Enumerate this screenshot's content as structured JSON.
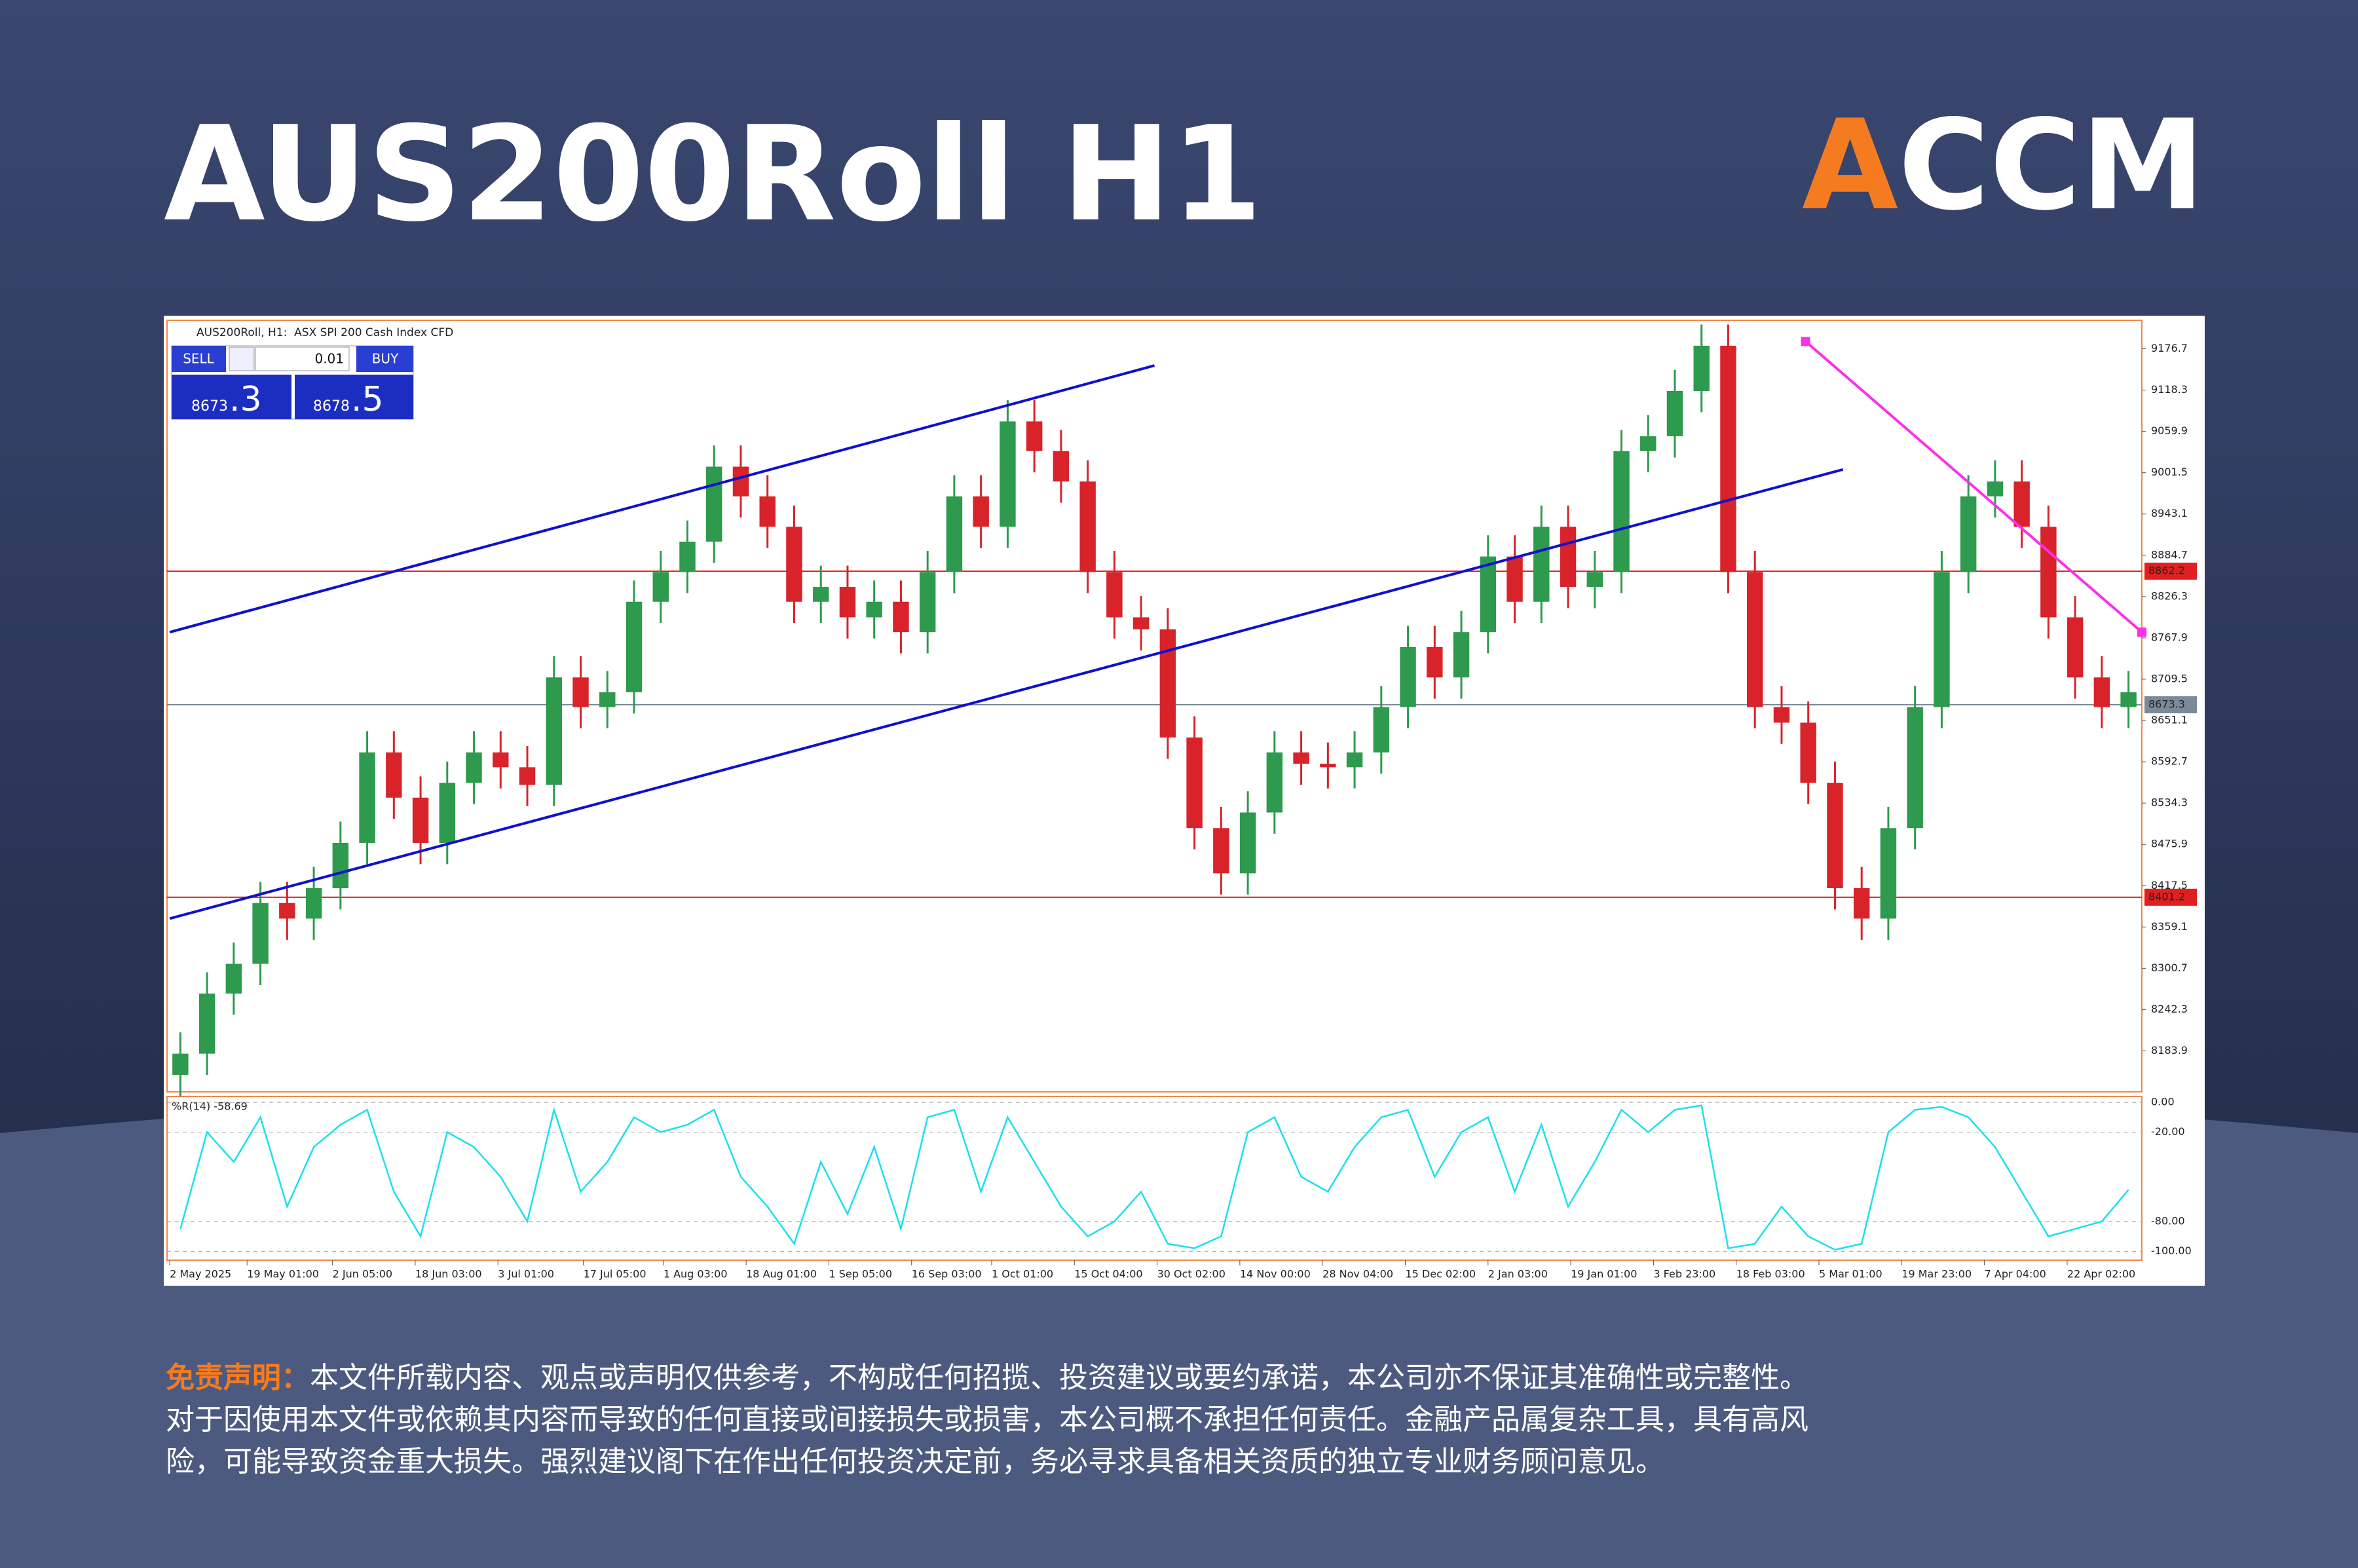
{
  "title": "AUS200Roll H1",
  "logo": [
    "A",
    "CC",
    "M"
  ],
  "terminal": {
    "header": "AUS200Roll, H1:  ASX SPI 200 Cash Index CFD",
    "sell": "SELL",
    "buy": "BUY",
    "volume": "0.01",
    "sell_price": "8673",
    "sell_frac": ".3",
    "buy_price": "8678",
    "buy_frac": ".5"
  },
  "disclaimer": {
    "label": "免责声明：",
    "lines": [
      "本文件所载内容、观点或声明仅供参考，不构成任何招揽、投资建议或要约承诺，本公司亦不保证其准确性或完整性。",
      "对于因使用本文件或依赖其内容而导致的任何直接或间接损失或损害，本公司概不承担任何责任。金融产品属复杂工具，具有高风",
      "险，可能导致资金重大损失。强烈建议阁下在作出任何投资决定前，务必寻求具备相关资质的独立专业财务顾问意见。"
    ]
  },
  "chart_data": [
    {
      "type": "candlestick",
      "up_color": "#2e9a4e",
      "down_color": "#d8232a",
      "open": [
        8150,
        8180,
        8265,
        8307,
        8393,
        8371,
        8414,
        8478,
        8606,
        8542,
        8478,
        8563,
        8606,
        8585,
        8560,
        8712,
        8670,
        8691,
        8819,
        8861,
        8904,
        9010,
        8968,
        8925,
        8819,
        8840,
        8797,
        8819,
        8776,
        8861,
        8968,
        8925,
        9074,
        9032,
        8989,
        8861,
        8797,
        8780,
        8627,
        8499,
        8435,
        8521,
        8606,
        8590,
        8585,
        8606,
        8670,
        8755,
        8712,
        8776,
        8883,
        8819,
        8925,
        8840,
        8861,
        9032,
        9053,
        9117,
        9181,
        8861,
        8670,
        8648,
        8563,
        8414,
        8371,
        8499,
        8670,
        8861,
        8968,
        8989,
        8925,
        8797,
        8712,
        8670
      ],
      "high": [
        8210,
        8295,
        8337,
        8423,
        8423,
        8444,
        8508,
        8636,
        8636,
        8572,
        8593,
        8636,
        8636,
        8615,
        8742,
        8742,
        8721,
        8849,
        8891,
        8934,
        9040,
        9040,
        8998,
        8955,
        8870,
        8870,
        8849,
        8849,
        8891,
        8998,
        8998,
        9104,
        9104,
        9062,
        9019,
        8891,
        8827,
        8810,
        8657,
        8529,
        8551,
        8636,
        8636,
        8620,
        8636,
        8700,
        8785,
        8785,
        8806,
        8913,
        8913,
        8955,
        8955,
        8891,
        9062,
        9083,
        9147,
        9211,
        9211,
        8891,
        8700,
        8678,
        8593,
        8444,
        8529,
        8700,
        8891,
        8998,
        9019,
        9019,
        8955,
        8827,
        8742,
        8721
      ],
      "low": [
        8120,
        8150,
        8235,
        8277,
        8341,
        8341,
        8384,
        8448,
        8512,
        8448,
        8448,
        8533,
        8555,
        8530,
        8530,
        8640,
        8640,
        8661,
        8789,
        8831,
        8874,
        8938,
        8895,
        8789,
        8789,
        8767,
        8767,
        8746,
        8746,
        8831,
        8895,
        8895,
        9002,
        8959,
        8831,
        8767,
        8750,
        8597,
        8469,
        8405,
        8405,
        8491,
        8560,
        8555,
        8555,
        8576,
        8640,
        8682,
        8682,
        8746,
        8789,
        8789,
        8810,
        8810,
        8831,
        9002,
        9023,
        9087,
        8831,
        8640,
        8618,
        8533,
        8384,
        8341,
        8341,
        8469,
        8640,
        8831,
        8938,
        8895,
        8767,
        8682,
        8640,
        8640
      ],
      "close": [
        8180,
        8265,
        8307,
        8393,
        8371,
        8414,
        8478,
        8606,
        8542,
        8478,
        8563,
        8606,
        8585,
        8560,
        8712,
        8670,
        8691,
        8819,
        8861,
        8904,
        9010,
        8968,
        8925,
        8819,
        8840,
        8797,
        8819,
        8776,
        8861,
        8968,
        8925,
        9074,
        9032,
        8989,
        8861,
        8797,
        8780,
        8627,
        8499,
        8435,
        8521,
        8606,
        8590,
        8585,
        8606,
        8670,
        8755,
        8712,
        8776,
        8883,
        8819,
        8925,
        8840,
        8861,
        9032,
        9053,
        9117,
        9181,
        8861,
        8670,
        8648,
        8563,
        8414,
        8371,
        8499,
        8670,
        8861,
        8968,
        8989,
        8925,
        8797,
        8712,
        8670,
        8691
      ],
      "xlim": [
        -0.5,
        73.5
      ],
      "ylim": [
        8126,
        9217
      ],
      "yticks": [
        9176.7,
        9118.3,
        9059.9,
        9001.5,
        8943.1,
        8884.7,
        8826.3,
        8767.9,
        8709.5,
        8651.1,
        8592.7,
        8534.3,
        8475.9,
        8417.5,
        8359.1,
        8300.7,
        8242.3,
        8183.9
      ],
      "xticks": [
        {
          "value": -0.4,
          "label": "2 May 2025"
        },
        {
          "value": 2.5,
          "label": "19 May 01:00"
        },
        {
          "value": 5.7,
          "label": "2 Jun 05:00"
        },
        {
          "value": 8.8,
          "label": "18 Jun 03:00"
        },
        {
          "value": 11.9,
          "label": "3 Jul 01:00"
        },
        {
          "value": 15.1,
          "label": "17 Jul 05:00"
        },
        {
          "value": 18.1,
          "label": "1 Aug 03:00"
        },
        {
          "value": 21.2,
          "label": "18 Aug 01:00"
        },
        {
          "value": 24.3,
          "label": "1 Sep 05:00"
        },
        {
          "value": 27.4,
          "label": "16 Sep 03:00"
        },
        {
          "value": 30.4,
          "label": "1 Oct 01:00"
        },
        {
          "value": 33.5,
          "label": "15 Oct 04:00"
        },
        {
          "value": 36.6,
          "label": "30 Oct 02:00"
        },
        {
          "value": 39.7,
          "label": "14 Nov 00:00"
        },
        {
          "value": 42.8,
          "label": "28 Nov 04:00"
        },
        {
          "value": 45.9,
          "label": "15 Dec 02:00"
        },
        {
          "value": 49.0,
          "label": "2 Jan 03:00"
        },
        {
          "value": 52.1,
          "label": "19 Jan 01:00"
        },
        {
          "value": 55.2,
          "label": "3 Feb 23:00"
        },
        {
          "value": 58.3,
          "label": "18 Feb 03:00"
        },
        {
          "value": 61.4,
          "label": "5 Mar 01:00"
        },
        {
          "value": 64.5,
          "label": "19 Mar 23:00"
        },
        {
          "value": 67.6,
          "label": "7 Apr 04:00"
        },
        {
          "value": 70.7,
          "label": "22 Apr 02:00"
        }
      ],
      "hlines": [
        {
          "value": 8862.2,
          "color": "#e02020"
        },
        {
          "value": 8673.3,
          "color": "#7a8a99"
        },
        {
          "value": 8401.2,
          "color": "#e02020"
        }
      ],
      "trendlines": [
        {
          "x": [
            -0.4,
            36.5
          ],
          "y": [
            8776,
            9153
          ],
          "color": "#1010d0"
        },
        {
          "x": [
            -0.4,
            62.3
          ],
          "y": [
            8371,
            9006
          ],
          "color": "#1010d0"
        },
        {
          "x": [
            60.9,
            73.5
          ],
          "y": [
            9187,
            8776
          ],
          "color": "#ff2ee8",
          "markers": true
        }
      ]
    },
    {
      "type": "line",
      "label": "%R(14) -58.69",
      "color": "#19e0ee",
      "ylim": [
        -106,
        4
      ],
      "yticks": [
        {
          "value": 0,
          "label": "0.00"
        },
        {
          "value": -20,
          "label": "-20.00"
        },
        {
          "value": -80,
          "label": "-80.00"
        },
        {
          "value": -100,
          "label": "-100.00"
        }
      ],
      "values": [
        -85,
        -20,
        -40,
        -10,
        -70,
        -30,
        -15,
        -5,
        -60,
        -90,
        -20,
        -30,
        -50,
        -80,
        -5,
        -60,
        -40,
        -10,
        -20,
        -15,
        -5,
        -50,
        -70,
        -95,
        -40,
        -75,
        -30,
        -85,
        -10,
        -5,
        -60,
        -10,
        -40,
        -70,
        -90,
        -80,
        -60,
        -95,
        -98,
        -90,
        -20,
        -10,
        -50,
        -60,
        -30,
        -10,
        -5,
        -50,
        -20,
        -10,
        -60,
        -15,
        -70,
        -40,
        -5,
        -20,
        -5,
        -2,
        -98,
        -95,
        -70,
        -90,
        -99,
        -95,
        -20,
        -5,
        -3,
        -10,
        -30,
        -60,
        -90,
        -85,
        -80,
        -58.69
      ]
    }
  ]
}
